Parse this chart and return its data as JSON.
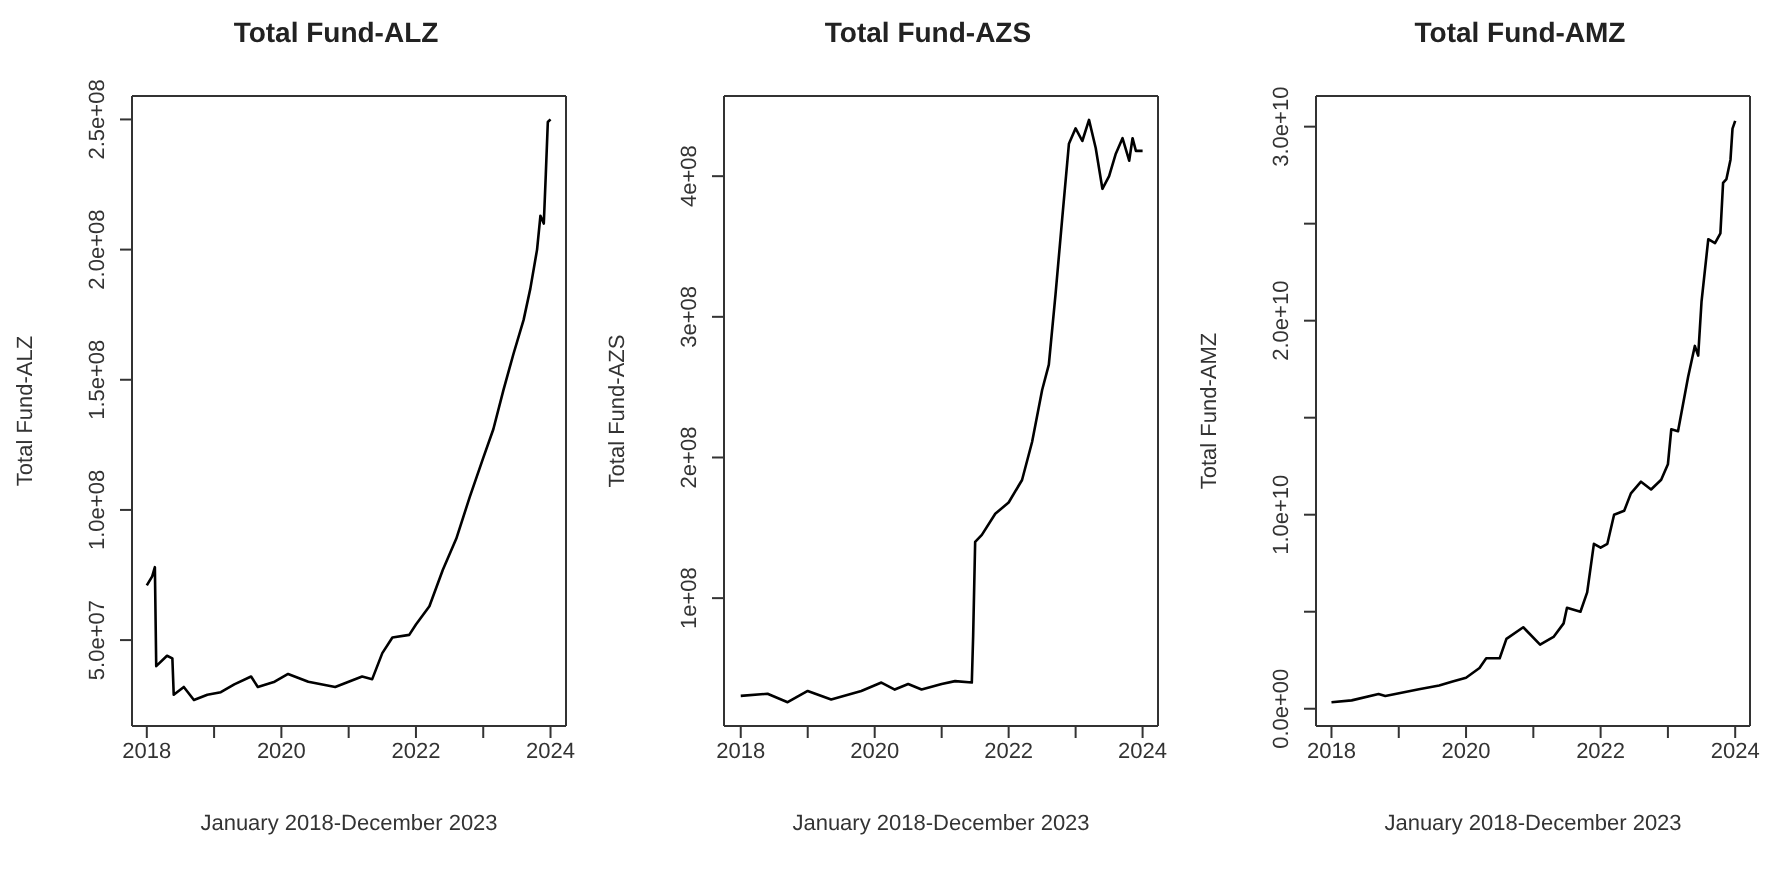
{
  "chart_data": [
    {
      "type": "line",
      "title": "Total Fund-ALZ",
      "xlabel": "January 2018-December 2023",
      "ylabel": "Total Fund-ALZ",
      "color": "#000000",
      "x": [
        2018.0,
        2018.08,
        2018.12,
        2018.14,
        2018.3,
        2018.38,
        2018.4,
        2018.55,
        2018.7,
        2018.9,
        2019.1,
        2019.3,
        2019.55,
        2019.65,
        2019.9,
        2020.1,
        2020.4,
        2020.8,
        2021.0,
        2021.2,
        2021.35,
        2021.5,
        2021.65,
        2021.9,
        2022.0,
        2022.2,
        2022.4,
        2022.6,
        2022.8,
        2023.0,
        2023.15,
        2023.3,
        2023.45,
        2023.6,
        2023.7,
        2023.8,
        2023.85,
        2023.9,
        2023.93,
        2023.96,
        2024.0
      ],
      "values": [
        71000000,
        74500000,
        78000000,
        40000000,
        44000000,
        43000000,
        29000000,
        32000000,
        27000000,
        29000000,
        30000000,
        33000000,
        36000000,
        32000000,
        34000000,
        37000000,
        34000000,
        32000000,
        34000000,
        36000000,
        35000000,
        45000000,
        51000000,
        52000000,
        56000000,
        63000000,
        77000000,
        89000000,
        105000000,
        120000000,
        131000000,
        146000000,
        160000000,
        173000000,
        185000000,
        200000000,
        213000000,
        210000000,
        229000000,
        249000000,
        250000000
      ],
      "xlim": [
        2017.78,
        2024.23
      ],
      "xticks": [
        2018,
        {
          "value": 2019,
          "label": null
        },
        2020,
        {
          "value": 2021,
          "label": null
        },
        2022,
        {
          "value": 2023,
          "label": null
        },
        2024
      ],
      "ylim": [
        17000000,
        259000000
      ],
      "yticks": [
        {
          "value": 50000000,
          "label": "5.0e+07"
        },
        {
          "value": 100000000,
          "label": "1.0e+08"
        },
        {
          "value": 150000000,
          "label": "1.5e+08"
        },
        {
          "value": 200000000,
          "label": "2.0e+08"
        },
        {
          "value": 250000000,
          "label": "2.5e+08"
        }
      ]
    },
    {
      "type": "line",
      "title": "Total Fund-AZS",
      "xlabel": "January 2018-December 2023",
      "ylabel": "Total Fund-AZS",
      "color": "#000000",
      "x": [
        2018.0,
        2018.4,
        2018.7,
        2019.0,
        2019.35,
        2019.8,
        2020.1,
        2020.3,
        2020.5,
        2020.7,
        2021.0,
        2021.2,
        2021.45,
        2021.47,
        2021.5,
        2021.6,
        2021.8,
        2022.0,
        2022.2,
        2022.35,
        2022.5,
        2022.6,
        2022.7,
        2022.8,
        2022.9,
        2023.0,
        2023.1,
        2023.2,
        2023.3,
        2023.4,
        2023.5,
        2023.6,
        2023.7,
        2023.8,
        2023.85,
        2023.9,
        2024.0
      ],
      "values": [
        30500000,
        32000000,
        26000000,
        34000000,
        28000000,
        34000000,
        40000000,
        35000000,
        39000000,
        35000000,
        39000000,
        41000000,
        40000000,
        73000000,
        140000000,
        145000000,
        160000000,
        168000000,
        184000000,
        211000000,
        248000000,
        266000000,
        316000000,
        370000000,
        423000000,
        434000000,
        425000000,
        440000000,
        420000000,
        391000000,
        400000000,
        416000000,
        427000000,
        411000000,
        427000000,
        418000000,
        418000000
      ],
      "xlim": [
        2017.75,
        2024.23
      ],
      "xticks": [
        2018,
        {
          "value": 2019,
          "label": null
        },
        2020,
        {
          "value": 2021,
          "label": null
        },
        2022,
        {
          "value": 2023,
          "label": null
        },
        2024
      ],
      "ylim": [
        9100000,
        457000000
      ],
      "yticks": [
        {
          "value": 100000000,
          "label": "1e+08"
        },
        {
          "value": 200000000,
          "label": "2e+08"
        },
        {
          "value": 300000000,
          "label": "3e+08"
        },
        {
          "value": 400000000,
          "label": "4e+08"
        }
      ]
    },
    {
      "type": "line",
      "title": "Total Fund-AMZ",
      "xlabel": "January 2018-December 2023",
      "ylabel": "Total Fund-AMZ",
      "color": "#000000",
      "x": [
        2018.0,
        2018.3,
        2018.7,
        2018.8,
        2019.3,
        2019.6,
        2019.8,
        2020.0,
        2020.2,
        2020.3,
        2020.5,
        2020.6,
        2020.85,
        2021.1,
        2021.3,
        2021.45,
        2021.5,
        2021.7,
        2021.8,
        2021.9,
        2022.0,
        2022.1,
        2022.2,
        2022.35,
        2022.45,
        2022.6,
        2022.75,
        2022.9,
        2023.0,
        2023.05,
        2023.15,
        2023.3,
        2023.4,
        2023.45,
        2023.5,
        2023.6,
        2023.7,
        2023.78,
        2023.82,
        2023.87,
        2023.93,
        2023.96,
        2024.0
      ],
      "values": [
        330000000,
        430000000,
        760000000,
        660000000,
        1000000000,
        1200000000,
        1400000000,
        1600000000,
        2100000000,
        2600000000,
        2600000000,
        3600000000,
        4200000000,
        3300000000,
        3700000000,
        4400000000,
        5200000000,
        5000000000,
        6000000000,
        8500000000,
        8300000000,
        8500000000,
        10000000000,
        10200000000,
        11100000000,
        11700000000,
        11300000000,
        11800000000,
        12600000000,
        14400000000,
        14300000000,
        17100000000,
        18700000000,
        18200000000,
        21000000000,
        24200000000,
        24000000000,
        24500000000,
        27100000000,
        27300000000,
        28300000000,
        29900000000,
        30300000000
      ],
      "xlim": [
        2017.77,
        2024.22
      ],
      "xticks": [
        2018,
        {
          "value": 2019,
          "label": null
        },
        2020,
        {
          "value": 2021,
          "label": null
        },
        2022,
        {
          "value": 2023,
          "label": null
        },
        2024
      ],
      "ylim": [
        -890000000,
        31580000000
      ],
      "yticks": [
        {
          "value": 0,
          "label": "0.0e+00"
        },
        {
          "value": 5000000000,
          "label": null
        },
        {
          "value": 10000000000,
          "label": "1.0e+10"
        },
        {
          "value": 15000000000,
          "label": null
        },
        {
          "value": 20000000000,
          "label": "2.0e+10"
        },
        {
          "value": 25000000000,
          "label": null
        },
        {
          "value": 30000000000,
          "label": "3.0e+10"
        }
      ]
    }
  ]
}
